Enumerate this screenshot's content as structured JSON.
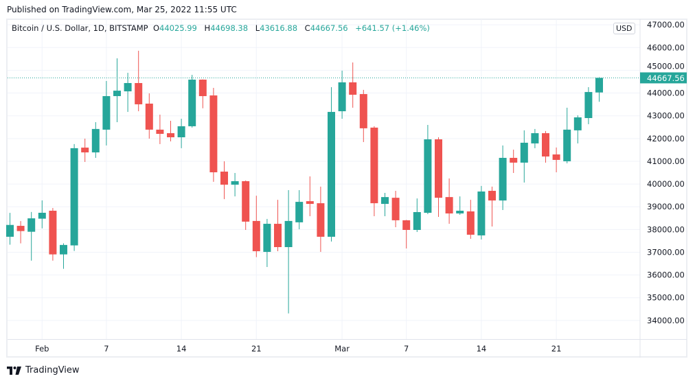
{
  "published": "Published on TradingView.com, Mar 25, 2022 11:55 UTC",
  "legend": {
    "symbol": "Bitcoin / U.S. Dollar, 1D, BITSTAMP",
    "o_label": "O",
    "o": "44025.99",
    "h_label": "H",
    "h": "44698.38",
    "l_label": "L",
    "l": "43616.88",
    "c_label": "C",
    "c": "44667.56",
    "change": "+641.57 (+1.46%)"
  },
  "currency_badge": "USD",
  "last_price_label": "44667.56",
  "brand": "TradingView",
  "colors": {
    "up": "#26a69a",
    "down": "#ef5350",
    "grid": "#f0f3fa"
  },
  "chart_data": {
    "type": "candlestick",
    "ylim": [
      33500,
      47000
    ],
    "grid": true,
    "y_ticks": [
      "34000.00",
      "35000.00",
      "36000.00",
      "37000.00",
      "38000.00",
      "39000.00",
      "40000.00",
      "41000.00",
      "42000.00",
      "43000.00",
      "44000.00",
      "45000.00",
      "46000.00",
      "47000.00"
    ],
    "x_ticks": [
      {
        "label": "Feb",
        "date": "2022-02-01"
      },
      {
        "label": "7",
        "date": "2022-02-07"
      },
      {
        "label": "14",
        "date": "2022-02-14"
      },
      {
        "label": "21",
        "date": "2022-02-21"
      },
      {
        "label": "Mar",
        "date": "2022-03-01"
      },
      {
        "label": "7",
        "date": "2022-03-07"
      },
      {
        "label": "14",
        "date": "2022-03-14"
      },
      {
        "label": "21",
        "date": "2022-03-21"
      }
    ],
    "last_price": 44667.56,
    "candles": [
      {
        "date": "2022-01-29",
        "o": 37680,
        "h": 38730,
        "l": 37330,
        "c": 38200
      },
      {
        "date": "2022-01-30",
        "o": 38160,
        "h": 38370,
        "l": 37390,
        "c": 37930
      },
      {
        "date": "2022-01-31",
        "o": 37900,
        "h": 38770,
        "l": 36630,
        "c": 38490
      },
      {
        "date": "2022-02-01",
        "o": 38475,
        "h": 39280,
        "l": 38050,
        "c": 38735
      },
      {
        "date": "2022-02-02",
        "o": 38825,
        "h": 38945,
        "l": 36630,
        "c": 36905
      },
      {
        "date": "2022-02-03",
        "o": 36905,
        "h": 37390,
        "l": 36270,
        "c": 37320
      },
      {
        "date": "2022-02-04",
        "o": 37300,
        "h": 41755,
        "l": 37055,
        "c": 41575
      },
      {
        "date": "2022-02-05",
        "o": 41600,
        "h": 41995,
        "l": 40970,
        "c": 41390
      },
      {
        "date": "2022-02-06",
        "o": 41390,
        "h": 42720,
        "l": 41150,
        "c": 42420
      },
      {
        "date": "2022-02-07",
        "o": 42390,
        "h": 44530,
        "l": 41695,
        "c": 43865
      },
      {
        "date": "2022-02-08",
        "o": 43865,
        "h": 45525,
        "l": 42720,
        "c": 44105
      },
      {
        "date": "2022-02-09",
        "o": 44075,
        "h": 44890,
        "l": 43170,
        "c": 44440
      },
      {
        "date": "2022-02-10",
        "o": 44440,
        "h": 45860,
        "l": 43200,
        "c": 43505
      },
      {
        "date": "2022-02-11",
        "o": 43535,
        "h": 43985,
        "l": 41995,
        "c": 42390
      },
      {
        "date": "2022-02-12",
        "o": 42390,
        "h": 43050,
        "l": 41755,
        "c": 42205
      },
      {
        "date": "2022-02-13",
        "o": 42235,
        "h": 42780,
        "l": 41875,
        "c": 42055
      },
      {
        "date": "2022-02-14",
        "o": 42055,
        "h": 42870,
        "l": 41575,
        "c": 42540
      },
      {
        "date": "2022-02-15",
        "o": 42540,
        "h": 44800,
        "l": 42480,
        "c": 44590
      },
      {
        "date": "2022-02-16",
        "o": 44590,
        "h": 44600,
        "l": 43330,
        "c": 43865
      },
      {
        "date": "2022-02-17",
        "o": 43895,
        "h": 44230,
        "l": 40095,
        "c": 40515
      },
      {
        "date": "2022-02-18",
        "o": 40545,
        "h": 41000,
        "l": 39335,
        "c": 39970
      },
      {
        "date": "2022-02-19",
        "o": 39970,
        "h": 40485,
        "l": 39455,
        "c": 40125
      },
      {
        "date": "2022-02-20",
        "o": 40125,
        "h": 40155,
        "l": 37980,
        "c": 38345
      },
      {
        "date": "2022-02-21",
        "o": 38375,
        "h": 39485,
        "l": 36785,
        "c": 37045
      },
      {
        "date": "2022-02-22",
        "o": 37015,
        "h": 38465,
        "l": 36350,
        "c": 38250
      },
      {
        "date": "2022-02-23",
        "o": 38250,
        "h": 39305,
        "l": 37045,
        "c": 37225
      },
      {
        "date": "2022-02-24",
        "o": 37225,
        "h": 39730,
        "l": 34310,
        "c": 38375
      },
      {
        "date": "2022-02-25",
        "o": 38315,
        "h": 39730,
        "l": 38010,
        "c": 39215
      },
      {
        "date": "2022-02-26",
        "o": 39245,
        "h": 40335,
        "l": 38585,
        "c": 39125
      },
      {
        "date": "2022-02-27",
        "o": 39155,
        "h": 39885,
        "l": 37015,
        "c": 37680
      },
      {
        "date": "2022-02-28",
        "o": 37680,
        "h": 44260,
        "l": 37470,
        "c": 43170
      },
      {
        "date": "2022-03-01",
        "o": 43200,
        "h": 44985,
        "l": 42870,
        "c": 44470
      },
      {
        "date": "2022-03-02",
        "o": 44470,
        "h": 45345,
        "l": 43355,
        "c": 43925
      },
      {
        "date": "2022-03-03",
        "o": 43955,
        "h": 44140,
        "l": 41845,
        "c": 42450
      },
      {
        "date": "2022-03-04",
        "o": 42480,
        "h": 42540,
        "l": 38585,
        "c": 39155
      },
      {
        "date": "2022-03-05",
        "o": 39125,
        "h": 39610,
        "l": 38585,
        "c": 39425
      },
      {
        "date": "2022-03-06",
        "o": 39395,
        "h": 39700,
        "l": 38100,
        "c": 38405
      },
      {
        "date": "2022-03-07",
        "o": 38405,
        "h": 38420,
        "l": 37165,
        "c": 37980
      },
      {
        "date": "2022-03-08",
        "o": 37980,
        "h": 39365,
        "l": 37890,
        "c": 38765
      },
      {
        "date": "2022-03-09",
        "o": 38735,
        "h": 42600,
        "l": 38675,
        "c": 41965
      },
      {
        "date": "2022-03-10",
        "o": 41965,
        "h": 42055,
        "l": 38555,
        "c": 39395
      },
      {
        "date": "2022-03-11",
        "o": 39425,
        "h": 40245,
        "l": 38250,
        "c": 38705
      },
      {
        "date": "2022-03-12",
        "o": 38705,
        "h": 39455,
        "l": 38645,
        "c": 38825
      },
      {
        "date": "2022-03-13",
        "o": 38795,
        "h": 39305,
        "l": 37590,
        "c": 37770
      },
      {
        "date": "2022-03-14",
        "o": 37740,
        "h": 39915,
        "l": 37560,
        "c": 39670
      },
      {
        "date": "2022-03-15",
        "o": 39700,
        "h": 39885,
        "l": 38130,
        "c": 39275
      },
      {
        "date": "2022-03-16",
        "o": 39275,
        "h": 41695,
        "l": 38855,
        "c": 41150
      },
      {
        "date": "2022-03-17",
        "o": 41150,
        "h": 41510,
        "l": 40485,
        "c": 40940
      },
      {
        "date": "2022-03-18",
        "o": 40940,
        "h": 42360,
        "l": 40065,
        "c": 41815
      },
      {
        "date": "2022-03-19",
        "o": 41785,
        "h": 42420,
        "l": 41575,
        "c": 42235
      },
      {
        "date": "2022-03-20",
        "o": 42235,
        "h": 42330,
        "l": 40940,
        "c": 41210
      },
      {
        "date": "2022-03-21",
        "o": 41300,
        "h": 41605,
        "l": 40515,
        "c": 41060
      },
      {
        "date": "2022-03-22",
        "o": 41000,
        "h": 43355,
        "l": 40910,
        "c": 42390
      },
      {
        "date": "2022-03-23",
        "o": 42360,
        "h": 43020,
        "l": 41785,
        "c": 42930
      },
      {
        "date": "2022-03-24",
        "o": 42900,
        "h": 44260,
        "l": 42630,
        "c": 44045
      },
      {
        "date": "2022-03-25",
        "o": 44025.99,
        "h": 44698.38,
        "l": 43616.88,
        "c": 44667.56
      }
    ]
  }
}
